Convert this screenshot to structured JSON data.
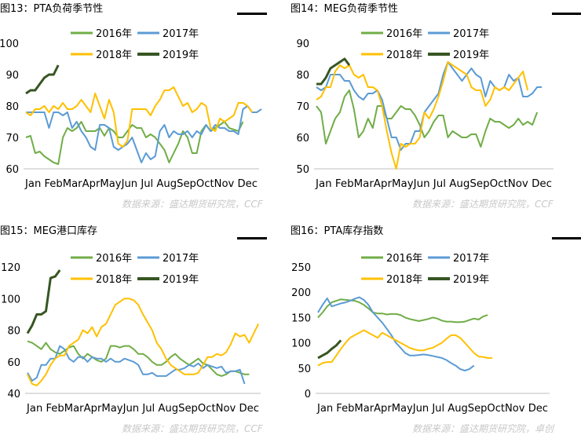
{
  "colors": {
    "2016": "#70ad47",
    "2017": "#5b9bd5",
    "2018": "#ffc000",
    "2019": "#375623"
  },
  "legend_labels": [
    "2016年",
    "2017年",
    "2018年",
    "2019年"
  ],
  "x_tick_labels": [
    "Jan",
    "Feb",
    "Mar",
    "Apr",
    "May",
    "Jun",
    "Jul",
    "Aug",
    "Sep",
    "Oct",
    "Nov",
    "Dec"
  ],
  "chart_data": [
    {
      "type": "line",
      "title": "图13：PTA负荷季节性",
      "source": "数据来源：盛达期货研究院，CCF",
      "ylim": [
        60,
        100
      ],
      "yticks": [
        60,
        70,
        80,
        90,
        100
      ],
      "series": [
        {
          "name": "2016年",
          "values": [
            70,
            70.5,
            65,
            65.5,
            64,
            63,
            62,
            61.5,
            70,
            73,
            72,
            73,
            75,
            72,
            72,
            72,
            73,
            70.5,
            73,
            72,
            70,
            70,
            72,
            74,
            73,
            73,
            70,
            71,
            70,
            68,
            66,
            62,
            65,
            68,
            72,
            70,
            65,
            65,
            72,
            74,
            72,
            73,
            74,
            75,
            73,
            72.5,
            72,
            75
          ]
        },
        {
          "name": "2017年",
          "values": [
            78,
            78,
            78,
            78,
            78,
            73,
            78,
            78,
            77,
            78,
            73,
            75,
            72,
            70,
            67,
            66,
            74,
            74,
            73,
            67,
            66,
            67,
            68,
            70,
            66,
            62,
            65,
            63,
            64,
            72,
            74,
            70,
            72,
            71,
            71,
            72,
            70,
            72,
            71,
            74,
            72,
            74,
            73,
            73,
            72,
            72,
            71,
            79,
            80,
            78,
            78,
            79
          ]
        },
        {
          "name": "2018年",
          "values": [
            78,
            77,
            79,
            79,
            80,
            78,
            80,
            79,
            81,
            79,
            79,
            80,
            82,
            80,
            78,
            84,
            80,
            76,
            82,
            78,
            68,
            67,
            69,
            79,
            79,
            79,
            79,
            77,
            80,
            82,
            85,
            85,
            86,
            83,
            80,
            81,
            78,
            79,
            81,
            80,
            73,
            72,
            76,
            75,
            76,
            77,
            81,
            81,
            80,
            78
          ]
        },
        {
          "name": "2019年",
          "values": [
            84,
            85,
            85,
            87,
            89,
            90,
            90,
            93
          ]
        }
      ]
    },
    {
      "type": "line",
      "title": "图14：MEG负荷季节性",
      "source": "数据来源：盛达期货研究院，CCF",
      "ylim": [
        50,
        90
      ],
      "yticks": [
        50,
        60,
        70,
        80,
        90
      ],
      "series": [
        {
          "name": "2016年",
          "values": [
            70,
            68,
            58,
            62,
            66,
            68,
            73,
            75,
            69,
            60,
            62,
            66,
            63,
            70,
            70,
            66,
            66,
            68,
            70,
            69,
            69,
            67,
            64,
            60,
            62,
            65,
            67,
            67,
            60,
            62,
            61,
            60,
            60,
            61,
            61,
            57,
            62,
            66,
            65,
            65,
            64,
            63,
            64,
            66,
            64,
            65,
            64,
            68
          ]
        },
        {
          "name": "2017年",
          "values": [
            76,
            75,
            76,
            80,
            80,
            80,
            78,
            78,
            75,
            73,
            72,
            74,
            74,
            75,
            72,
            66,
            60,
            60,
            56,
            58,
            58,
            62,
            62,
            68,
            70,
            72,
            74,
            80,
            84,
            82,
            80,
            78,
            80,
            82,
            80,
            79,
            73,
            78,
            76,
            75,
            76,
            80,
            78,
            79,
            73,
            73,
            74,
            76,
            76
          ]
        },
        {
          "name": "2018年",
          "values": [
            72,
            73,
            76,
            76,
            81,
            83,
            82,
            83,
            80,
            79,
            80,
            76,
            76,
            75,
            70,
            62,
            55,
            50,
            58,
            57,
            58,
            58,
            60,
            68,
            66,
            69,
            73,
            78,
            84,
            83,
            82,
            81,
            80,
            76,
            75,
            75,
            70,
            72,
            76,
            75,
            76,
            75,
            77,
            79,
            81,
            75
          ]
        },
        {
          "name": "2019年",
          "values": [
            77,
            77,
            79,
            82,
            83,
            84,
            85,
            83
          ]
        }
      ]
    },
    {
      "type": "line",
      "title": "图15：MEG港口库存",
      "source": "数据来源：盛达期货研究院，CCF",
      "ylim": [
        40,
        120
      ],
      "yticks": [
        40,
        60,
        80,
        100,
        120
      ],
      "series": [
        {
          "name": "2016年",
          "values": [
            73,
            72,
            70,
            68,
            72,
            68,
            66,
            65,
            67,
            69,
            70,
            65,
            62,
            65,
            63,
            61,
            60,
            62,
            70,
            70,
            69,
            70,
            70,
            68,
            65,
            65,
            63,
            60,
            58,
            58,
            60,
            63,
            65,
            62,
            60,
            58,
            60,
            62,
            59,
            58,
            55,
            52,
            51,
            52,
            54,
            54,
            53,
            52,
            52
          ]
        },
        {
          "name": "2017年",
          "values": [
            53,
            48,
            50,
            58,
            58,
            62,
            62,
            70,
            68,
            62,
            60,
            63,
            63,
            60,
            63,
            62,
            62,
            60,
            62,
            60,
            60,
            62,
            61,
            60,
            58,
            52,
            52,
            53,
            51,
            51,
            51,
            53,
            55,
            55,
            56,
            58,
            57,
            59,
            56,
            58,
            57,
            56,
            57,
            53,
            54,
            54,
            55,
            46
          ]
        },
        {
          "name": "2018年",
          "values": [
            52,
            46,
            45,
            48,
            52,
            58,
            62,
            64,
            64,
            70,
            72,
            74,
            80,
            78,
            82,
            76,
            82,
            84,
            90,
            96,
            98,
            100,
            100,
            99,
            96,
            90,
            85,
            80,
            72,
            68,
            62,
            58,
            56,
            54,
            52,
            52,
            52,
            53,
            58,
            63,
            63,
            65,
            64,
            66,
            71,
            78,
            76,
            77,
            72,
            78,
            84
          ]
        },
        {
          "name": "2019年",
          "values": [
            78,
            83,
            90,
            90,
            92,
            113,
            114,
            118
          ]
        }
      ]
    },
    {
      "type": "line",
      "title": "图16：PTA库存指数",
      "source": "数据来源：盛达期货研究院，卓创",
      "ylim": [
        0,
        250
      ],
      "yticks": [
        0,
        50,
        100,
        150,
        200,
        250
      ],
      "series": [
        {
          "name": "2016年",
          "values": [
            150,
            160,
            172,
            180,
            183,
            186,
            185,
            184,
            183,
            180,
            175,
            168,
            160,
            158,
            158,
            156,
            157,
            157,
            155,
            150,
            147,
            145,
            143,
            145,
            147,
            150,
            148,
            144,
            142,
            142,
            141,
            141,
            142,
            145,
            148,
            146,
            152,
            155
          ]
        },
        {
          "name": "2017年",
          "values": [
            160,
            175,
            188,
            172,
            175,
            178,
            180,
            183,
            187,
            190,
            185,
            175,
            160,
            150,
            140,
            128,
            115,
            100,
            90,
            80,
            75,
            75,
            76,
            77,
            76,
            74,
            72,
            70,
            66,
            60,
            55,
            48,
            45,
            48,
            55
          ]
        },
        {
          "name": "2018年",
          "values": [
            55,
            60,
            62,
            62,
            75,
            88,
            100,
            110,
            115,
            120,
            125,
            120,
            115,
            110,
            120,
            115,
            110,
            105,
            100,
            95,
            90,
            87,
            85,
            85,
            88,
            90,
            95,
            100,
            108,
            115,
            115,
            110,
            100,
            90,
            80,
            73,
            72,
            70,
            70
          ]
        },
        {
          "name": "2019年",
          "values": [
            70,
            75,
            80,
            88,
            95,
            105
          ]
        }
      ]
    }
  ]
}
